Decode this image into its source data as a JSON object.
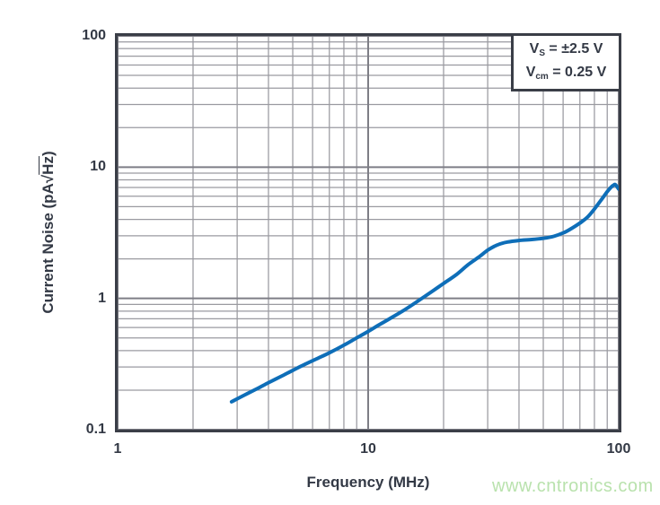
{
  "watermark": {
    "text": "www.cntronics.com"
  },
  "chart_data": {
    "type": "line",
    "title": "",
    "xlabel": "Frequency (MHz)",
    "ylabel": "Current Noise (pA√Hz)",
    "ylabel_prefix": "Current Noise (pA√",
    "ylabel_sqrt_arg": "Hz",
    "ylabel_suffix": ")",
    "xscale": "log",
    "yscale": "log",
    "xlim": [
      1,
      100
    ],
    "ylim": [
      0.1,
      100
    ],
    "grid": "major+minor",
    "legend": "none",
    "colors": {
      "curve": "#0e6eb8",
      "grid_minor": "#9a9aa0",
      "grid_major": "#7e7e86",
      "frame": "#3a3e47",
      "text": "#333945",
      "watermark": "#b9e2ad"
    },
    "x_ticks": {
      "values": [
        1,
        10,
        100
      ],
      "labels": [
        "1",
        "10",
        "100"
      ]
    },
    "y_ticks": {
      "values": [
        0.1,
        1,
        10,
        100
      ],
      "labels": [
        "0.1",
        "1",
        "10",
        "100"
      ]
    },
    "annotation": {
      "lines": [
        {
          "base": "V",
          "sub": "S",
          "rest": " = ±2.5 V"
        },
        {
          "base": "V",
          "sub": "cm",
          "rest": " = 0.25 V"
        }
      ]
    },
    "series": [
      {
        "name": "current-noise",
        "points": [
          [
            2.85,
            0.163
          ],
          [
            3.2,
            0.183
          ],
          [
            3.6,
            0.205
          ],
          [
            4,
            0.228
          ],
          [
            4.5,
            0.255
          ],
          [
            5,
            0.283
          ],
          [
            5.6,
            0.315
          ],
          [
            6.3,
            0.35
          ],
          [
            7,
            0.385
          ],
          [
            8,
            0.44
          ],
          [
            9,
            0.5
          ],
          [
            10,
            0.56
          ],
          [
            11,
            0.625
          ],
          [
            12.5,
            0.72
          ],
          [
            14,
            0.82
          ],
          [
            16,
            0.97
          ],
          [
            18,
            1.13
          ],
          [
            20,
            1.3
          ],
          [
            22.5,
            1.52
          ],
          [
            25,
            1.8
          ],
          [
            27.5,
            2.05
          ],
          [
            30,
            2.33
          ],
          [
            32,
            2.5
          ],
          [
            34,
            2.62
          ],
          [
            36,
            2.69
          ],
          [
            40,
            2.76
          ],
          [
            45,
            2.81
          ],
          [
            50,
            2.87
          ],
          [
            55,
            2.97
          ],
          [
            60,
            3.15
          ],
          [
            65,
            3.42
          ],
          [
            70,
            3.75
          ],
          [
            75,
            4.15
          ],
          [
            80,
            4.8
          ],
          [
            85,
            5.6
          ],
          [
            90,
            6.5
          ],
          [
            93,
            7.0
          ],
          [
            95,
            7.25
          ],
          [
            97,
            7.35
          ],
          [
            100,
            6.8
          ]
        ]
      }
    ]
  }
}
